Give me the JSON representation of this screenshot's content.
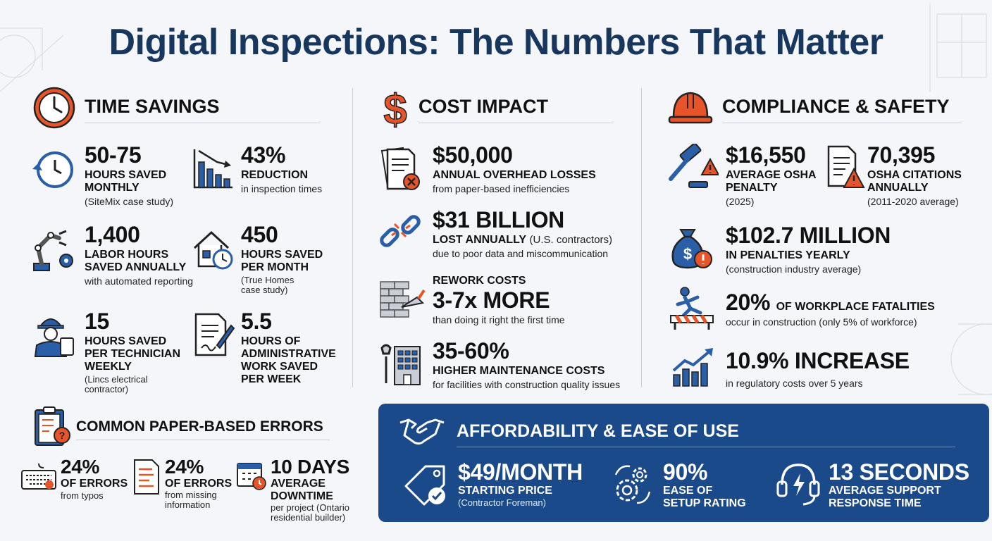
{
  "title": "Digital Inspections: The Numbers That Matter",
  "colors": {
    "navy": "#17375e",
    "accent": "#e8542a",
    "blue": "#2a5fa8",
    "banner": "#1b4a8a"
  },
  "sections": {
    "time": {
      "title": "TIME SAVINGS",
      "icon": "clock-icon",
      "stats": [
        {
          "value": "50-75",
          "label": "HOURS SAVED MONTHLY",
          "note": "(SiteMix case study)",
          "icon": "clock-refresh-icon"
        },
        {
          "value": "43%",
          "label": "REDUCTION",
          "note": "in inspection times",
          "icon": "declining-chart-icon"
        },
        {
          "value": "1,400",
          "label": "LABOR HOURS SAVED ANNUALLY",
          "note": "with automated reporting",
          "icon": "robot-arm-icon"
        },
        {
          "value": "450",
          "label": "HOURS SAVED PER MONTH",
          "note": "(True Homes case study)",
          "icon": "house-clock-icon"
        },
        {
          "value": "15",
          "label": "HOURS SAVED PER TECHNICIAN WEEKLY",
          "note": "(Lincs electrical contractor)",
          "icon": "technician-icon"
        },
        {
          "value": "5.5",
          "label": "HOURS OF ADMINISTRATIVE WORK SAVED PER WEEK",
          "note": "",
          "icon": "document-pen-icon"
        }
      ]
    },
    "cost": {
      "title": "COST IMPACT",
      "icon": "dollar-icon",
      "stats": [
        {
          "value": "$50,000",
          "label": "ANNUAL OVERHEAD LOSSES",
          "note": "from paper-based inefficiencies",
          "icon": "paper-error-icon"
        },
        {
          "value": "$31 BILLION",
          "label": "LOST ANNUALLY",
          "label_note": "(U.S. contractors)",
          "note": "due to poor data and miscommunication",
          "icon": "broken-link-icon"
        },
        {
          "pre": "REWORK COSTS",
          "value": "3-7x MORE",
          "note": "than doing it right the first time",
          "icon": "brick-wall-icon"
        },
        {
          "value": "35-60%",
          "label": "HIGHER MAINTENANCE COSTS",
          "note": "for facilities with construction quality issues",
          "icon": "wrench-building-icon"
        }
      ]
    },
    "compliance": {
      "title": "COMPLIANCE & SAFETY",
      "icon": "hard-hat-icon",
      "stats": [
        {
          "value": "$16,550",
          "label": "AVERAGE OSHA PENALTY",
          "note": "(2025)",
          "icon": "gavel-warning-icon"
        },
        {
          "value": "70,395",
          "label": "OSHA CITATIONS ANNUALLY",
          "note": "(2011-2020 average)",
          "icon": "document-warning-icon"
        },
        {
          "value": "$102.7 MILLION",
          "label": "IN PENALTIES YEARLY",
          "note": "(construction industry average)",
          "icon": "money-bag-icon"
        },
        {
          "value": "20%",
          "label": "OF WORKPLACE FATALITIES",
          "note": "occur in construction (only 5% of workforce)",
          "icon": "fall-hazard-icon"
        },
        {
          "value": "10.9% INCREASE",
          "label": "",
          "note": "in regulatory costs over 5 years",
          "icon": "rising-chart-icon"
        }
      ]
    },
    "errors": {
      "title": "COMMON PAPER-BASED ERRORS",
      "icon": "clipboard-question-icon",
      "stats": [
        {
          "value": "24%",
          "label": "OF ERRORS",
          "note": "from typos",
          "icon": "keyboard-icon"
        },
        {
          "value": "24%",
          "label": "OF ERRORS",
          "note": "from missing information",
          "icon": "form-icon"
        },
        {
          "value": "10 DAYS",
          "label": "AVERAGE DOWNTIME",
          "note": "per project (Ontario residential builder)",
          "icon": "calendar-clock-icon"
        }
      ]
    },
    "afford": {
      "title": "AFFORDABILITY & EASE OF USE",
      "icon": "handshake-icon",
      "stats": [
        {
          "value": "$49/MONTH",
          "label": "STARTING PRICE",
          "note": "(Contractor Foreman)",
          "icon": "price-tag-icon"
        },
        {
          "value": "90%",
          "label": "EASE OF SETUP RATING",
          "note": "",
          "icon": "gears-icon"
        },
        {
          "value": "13 SECONDS",
          "label": "AVERAGE SUPPORT RESPONSE TIME",
          "note": "",
          "icon": "headset-icon"
        }
      ]
    }
  }
}
